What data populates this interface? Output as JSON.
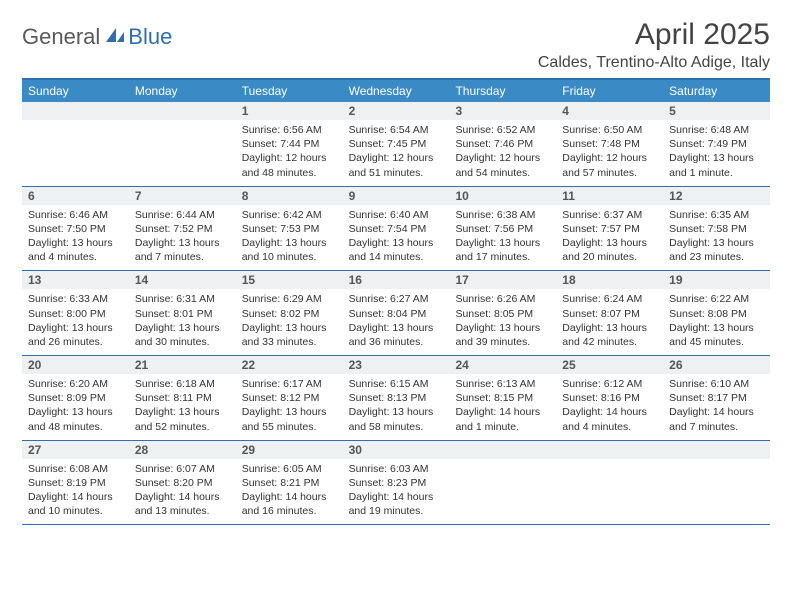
{
  "logo": {
    "general": "General",
    "blue": "Blue"
  },
  "title": "April 2025",
  "location": "Caldes, Trentino-Alto Adige, Italy",
  "colors": {
    "header_bar": "#3a8ac6",
    "header_border": "#2f6fb0",
    "daynum_bg": "#eef0f1",
    "text": "#333333",
    "logo_gray": "#5a5a5a",
    "logo_blue": "#2f6fb0"
  },
  "days_of_week": [
    "Sunday",
    "Monday",
    "Tuesday",
    "Wednesday",
    "Thursday",
    "Friday",
    "Saturday"
  ],
  "weeks": [
    [
      null,
      null,
      {
        "n": "1",
        "sunrise": "6:56 AM",
        "sunset": "7:44 PM",
        "daylight": "12 hours and 48 minutes."
      },
      {
        "n": "2",
        "sunrise": "6:54 AM",
        "sunset": "7:45 PM",
        "daylight": "12 hours and 51 minutes."
      },
      {
        "n": "3",
        "sunrise": "6:52 AM",
        "sunset": "7:46 PM",
        "daylight": "12 hours and 54 minutes."
      },
      {
        "n": "4",
        "sunrise": "6:50 AM",
        "sunset": "7:48 PM",
        "daylight": "12 hours and 57 minutes."
      },
      {
        "n": "5",
        "sunrise": "6:48 AM",
        "sunset": "7:49 PM",
        "daylight": "13 hours and 1 minute."
      }
    ],
    [
      {
        "n": "6",
        "sunrise": "6:46 AM",
        "sunset": "7:50 PM",
        "daylight": "13 hours and 4 minutes."
      },
      {
        "n": "7",
        "sunrise": "6:44 AM",
        "sunset": "7:52 PM",
        "daylight": "13 hours and 7 minutes."
      },
      {
        "n": "8",
        "sunrise": "6:42 AM",
        "sunset": "7:53 PM",
        "daylight": "13 hours and 10 minutes."
      },
      {
        "n": "9",
        "sunrise": "6:40 AM",
        "sunset": "7:54 PM",
        "daylight": "13 hours and 14 minutes."
      },
      {
        "n": "10",
        "sunrise": "6:38 AM",
        "sunset": "7:56 PM",
        "daylight": "13 hours and 17 minutes."
      },
      {
        "n": "11",
        "sunrise": "6:37 AM",
        "sunset": "7:57 PM",
        "daylight": "13 hours and 20 minutes."
      },
      {
        "n": "12",
        "sunrise": "6:35 AM",
        "sunset": "7:58 PM",
        "daylight": "13 hours and 23 minutes."
      }
    ],
    [
      {
        "n": "13",
        "sunrise": "6:33 AM",
        "sunset": "8:00 PM",
        "daylight": "13 hours and 26 minutes."
      },
      {
        "n": "14",
        "sunrise": "6:31 AM",
        "sunset": "8:01 PM",
        "daylight": "13 hours and 30 minutes."
      },
      {
        "n": "15",
        "sunrise": "6:29 AM",
        "sunset": "8:02 PM",
        "daylight": "13 hours and 33 minutes."
      },
      {
        "n": "16",
        "sunrise": "6:27 AM",
        "sunset": "8:04 PM",
        "daylight": "13 hours and 36 minutes."
      },
      {
        "n": "17",
        "sunrise": "6:26 AM",
        "sunset": "8:05 PM",
        "daylight": "13 hours and 39 minutes."
      },
      {
        "n": "18",
        "sunrise": "6:24 AM",
        "sunset": "8:07 PM",
        "daylight": "13 hours and 42 minutes."
      },
      {
        "n": "19",
        "sunrise": "6:22 AM",
        "sunset": "8:08 PM",
        "daylight": "13 hours and 45 minutes."
      }
    ],
    [
      {
        "n": "20",
        "sunrise": "6:20 AM",
        "sunset": "8:09 PM",
        "daylight": "13 hours and 48 minutes."
      },
      {
        "n": "21",
        "sunrise": "6:18 AM",
        "sunset": "8:11 PM",
        "daylight": "13 hours and 52 minutes."
      },
      {
        "n": "22",
        "sunrise": "6:17 AM",
        "sunset": "8:12 PM",
        "daylight": "13 hours and 55 minutes."
      },
      {
        "n": "23",
        "sunrise": "6:15 AM",
        "sunset": "8:13 PM",
        "daylight": "13 hours and 58 minutes."
      },
      {
        "n": "24",
        "sunrise": "6:13 AM",
        "sunset": "8:15 PM",
        "daylight": "14 hours and 1 minute."
      },
      {
        "n": "25",
        "sunrise": "6:12 AM",
        "sunset": "8:16 PM",
        "daylight": "14 hours and 4 minutes."
      },
      {
        "n": "26",
        "sunrise": "6:10 AM",
        "sunset": "8:17 PM",
        "daylight": "14 hours and 7 minutes."
      }
    ],
    [
      {
        "n": "27",
        "sunrise": "6:08 AM",
        "sunset": "8:19 PM",
        "daylight": "14 hours and 10 minutes."
      },
      {
        "n": "28",
        "sunrise": "6:07 AM",
        "sunset": "8:20 PM",
        "daylight": "14 hours and 13 minutes."
      },
      {
        "n": "29",
        "sunrise": "6:05 AM",
        "sunset": "8:21 PM",
        "daylight": "14 hours and 16 minutes."
      },
      {
        "n": "30",
        "sunrise": "6:03 AM",
        "sunset": "8:23 PM",
        "daylight": "14 hours and 19 minutes."
      },
      null,
      null,
      null
    ]
  ],
  "labels": {
    "sunrise": "Sunrise: ",
    "sunset": "Sunset: ",
    "daylight": "Daylight: "
  }
}
